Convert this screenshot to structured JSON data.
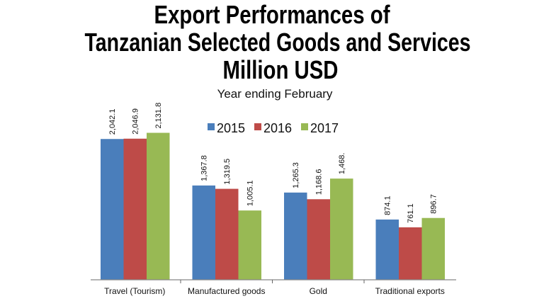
{
  "chart_data": {
    "type": "bar",
    "title_lines": [
      "Export Performances of",
      "Tanzanian Selected Goods and Services",
      "Million USD"
    ],
    "subtitle": "Year ending February",
    "categories": [
      "Travel (Tourism)",
      "Manufactured goods",
      "Gold",
      "Traditional exports"
    ],
    "series": [
      {
        "name": "2015",
        "color": "#4a7ebb",
        "values": [
          2042.1,
          1367.8,
          1265.3,
          874.1
        ],
        "labels": [
          "2,042.1",
          "1,367.8",
          "1,265.3",
          "874.1"
        ]
      },
      {
        "name": "2016",
        "color": "#be4b48",
        "values": [
          2046.9,
          1319.5,
          1168.6,
          761.1
        ],
        "labels": [
          "2,046.9",
          "1,319.5",
          "1,168.6",
          "761.1"
        ]
      },
      {
        "name": "2017",
        "color": "#98b954",
        "values": [
          2131.8,
          1005.1,
          1468.0,
          896.7
        ],
        "labels": [
          "2,131.8",
          "1,005.1",
          "1,468.",
          "896.7"
        ]
      }
    ],
    "ylim": [
      0,
      2250
    ],
    "grid": false,
    "legend_placement": "top-center"
  }
}
